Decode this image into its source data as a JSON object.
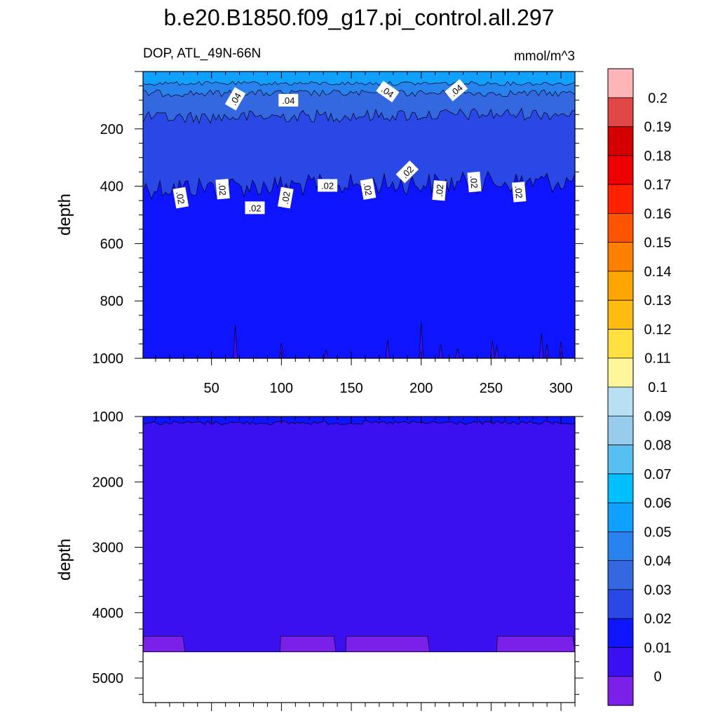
{
  "chart_data": {
    "type": "contour",
    "title": "b.e20.B1850.f09_g17.pi_control.all.297",
    "variable_label": "DOP, ATL_49N-66N",
    "units_label": "mmol/m^3",
    "ylabel": "depth",
    "xlim": [
      1,
      310
    ],
    "x_ticks": [
      50,
      100,
      150,
      200,
      250,
      300
    ],
    "top_panel": {
      "ylim": [
        0,
        1000
      ],
      "y_ticks": [
        200,
        400,
        600,
        800,
        1000
      ],
      "contour_labels": [
        {
          "text": ".04",
          "x": 67,
          "y": 95,
          "rot": -60
        },
        {
          "text": ".04",
          "x": 105,
          "y": 100,
          "rot": 0
        },
        {
          "text": ".04",
          "x": 176,
          "y": 70,
          "rot": 35
        },
        {
          "text": ".04",
          "x": 225,
          "y": 65,
          "rot": -40
        },
        {
          "text": ".02",
          "x": 28,
          "y": 440,
          "rot": 80
        },
        {
          "text": ".02",
          "x": 58,
          "y": 410,
          "rot": 85
        },
        {
          "text": ".02",
          "x": 81,
          "y": 475,
          "rot": 0
        },
        {
          "text": ".02",
          "x": 103,
          "y": 440,
          "rot": -80
        },
        {
          "text": ".02",
          "x": 133,
          "y": 397,
          "rot": 0
        },
        {
          "text": ".02",
          "x": 162,
          "y": 410,
          "rot": 80
        },
        {
          "text": ".02",
          "x": 190,
          "y": 350,
          "rot": -45
        },
        {
          "text": ".02",
          "x": 213,
          "y": 415,
          "rot": -85
        },
        {
          "text": ".02",
          "x": 238,
          "y": 385,
          "rot": 85
        },
        {
          "text": ".02",
          "x": 270,
          "y": 420,
          "rot": 85
        }
      ]
    },
    "bottom_panel": {
      "ylim": [
        1000,
        5375
      ],
      "y_ticks": [
        1000,
        2000,
        3000,
        4000,
        5000
      ],
      "ocean_bottom_depth": 4600
    },
    "colorbar": {
      "levels": [
        "0.2",
        "0.19",
        "0.18",
        "0.17",
        "0.16",
        "0.15",
        "0.14",
        "0.13",
        "0.12",
        "0.11",
        "0.1",
        "0.09",
        "0.08",
        "0.07",
        "0.06",
        "0.05",
        "0.04",
        "0.03",
        "0.02",
        "0.01",
        "0"
      ],
      "colors_top_to_bottom": [
        "#FFB5B5",
        "#E04848",
        "#D40000",
        "#EE0000",
        "#FF2200",
        "#FF5500",
        "#FF7F00",
        "#FFA500",
        "#FFBB10",
        "#FFE040",
        "#FFF59A",
        "#B8E0F2",
        "#98CCEC",
        "#58C0F0",
        "#00BFFF",
        "#10A0FF",
        "#2882EE",
        "#3468E0",
        "#2A48E6",
        "#0F14FF",
        "#3A10F0",
        "#7B20E8"
      ]
    }
  }
}
